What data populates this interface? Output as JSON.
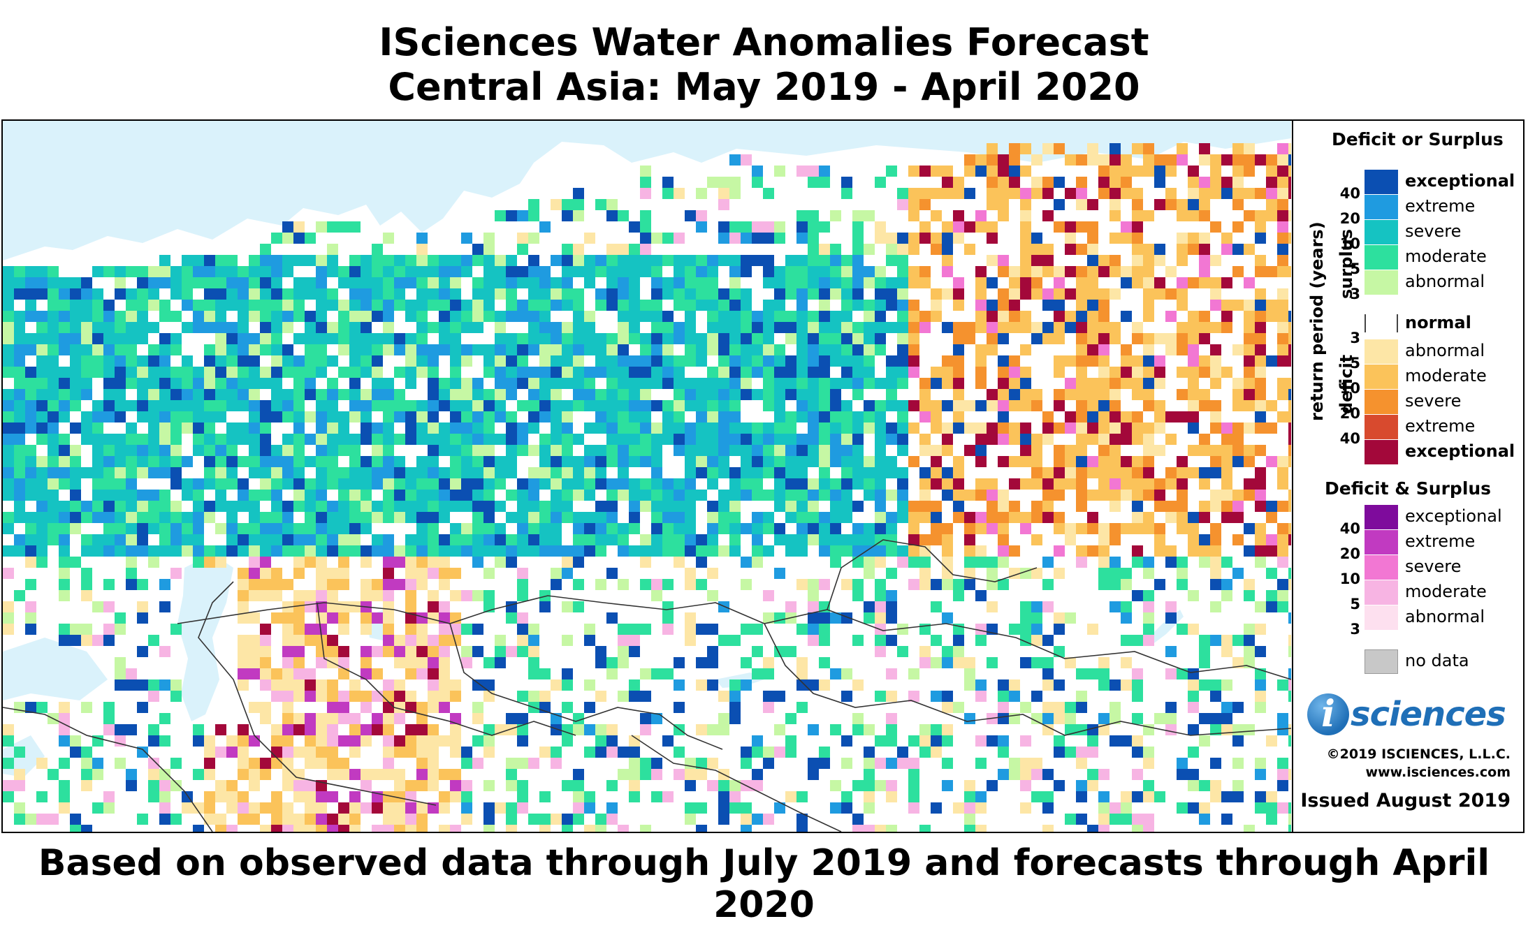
{
  "title": {
    "line1": "ISciences Water Anomalies Forecast",
    "line2": "Central Asia: May 2019 - April 2020"
  },
  "footer": "Based on observed data through July 2019 and forecasts through April 2020",
  "legend": {
    "deficit_or_surplus_heading": "Deficit or Surplus",
    "axis_label": "return period (years)",
    "surplus_label": "surplus",
    "deficit_label": "deficit",
    "surplus_levels": [
      {
        "label": "exceptional",
        "color": "#0b4fb2",
        "bold": true
      },
      {
        "label": "extreme",
        "color": "#1f9be0",
        "bold": false
      },
      {
        "label": "severe",
        "color": "#15c3c2",
        "bold": false
      },
      {
        "label": "moderate",
        "color": "#2de09e",
        "bold": false
      },
      {
        "label": "abnormal",
        "color": "#c6f7a4",
        "bold": false
      }
    ],
    "surplus_ticks": [
      "40",
      "20",
      "10",
      "5",
      "3"
    ],
    "normal": {
      "label": "normal",
      "color": "#ffffff"
    },
    "deficit_levels": [
      {
        "label": "abnormal",
        "color": "#fde6a6",
        "bold": false
      },
      {
        "label": "moderate",
        "color": "#fbc35a",
        "bold": false
      },
      {
        "label": "severe",
        "color": "#f5922e",
        "bold": false
      },
      {
        "label": "extreme",
        "color": "#d84a2e",
        "bold": false
      },
      {
        "label": "exceptional",
        "color": "#a3083a",
        "bold": true
      }
    ],
    "deficit_ticks": [
      "3",
      "5",
      "10",
      "20",
      "40"
    ],
    "both_heading": "Deficit & Surplus",
    "both_levels": [
      {
        "label": "exceptional",
        "color": "#7e0b9c"
      },
      {
        "label": "extreme",
        "color": "#c13ac1"
      },
      {
        "label": "severe",
        "color": "#f277d3"
      },
      {
        "label": "moderate",
        "color": "#f7b4e3"
      },
      {
        "label": "abnormal",
        "color": "#fde0ef"
      }
    ],
    "both_ticks": [
      "40",
      "20",
      "10",
      "5",
      "3"
    ],
    "no_data": {
      "label": "no data",
      "color": "#c8c8c8"
    }
  },
  "logo": {
    "i": "i",
    "word": "sciences"
  },
  "copyright": "©2019 ISCIENCES, L.L.C.",
  "website": "www.isciences.com",
  "issued": "Issued August 2019",
  "colors": {
    "water": "#daf2fb",
    "land": "#ffffff",
    "border": "#333333"
  }
}
